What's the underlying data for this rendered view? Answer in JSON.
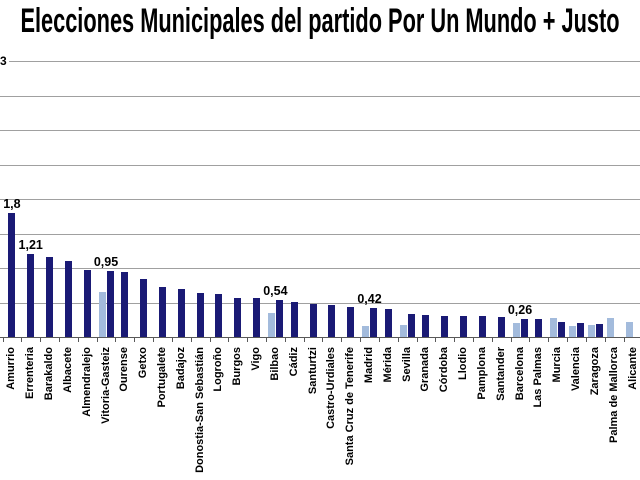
{
  "chart_data": {
    "type": "bar",
    "title": "Elecciones Municipales del partido Por Un Mundo + Justo",
    "ylim": [
      0,
      4
    ],
    "gridline_step": 0.5,
    "decimal_separator": ",",
    "legend_position": "none",
    "y_axis": {
      "visible_label": "3"
    },
    "colors": {
      "dark_series": "#1a1a75",
      "light_series": "#a3bbdc",
      "gridline": "#a0a0a0",
      "axis": "#595959",
      "title_text": "#000000",
      "background": "#ffffff"
    },
    "categories": [
      "Amurrio",
      "Errenteria",
      "Barakaldo",
      "Albacete",
      "Almendralejo",
      "Vitoria-Gasteiz",
      "Ourense",
      "Getxo",
      "Portugalete",
      "Badajoz",
      "Donostia-San Sebastián",
      "Logroño",
      "Burgos",
      "Vigo",
      "Bilbao",
      "Cádiz",
      "Santurtzi",
      "Castro-Urdiales",
      "Santa Cruz de Tenerife",
      "Madrid",
      "Mérida",
      "Sevilla",
      "Granada",
      "Córdoba",
      "Llodio",
      "Pamplona",
      "Santander",
      "Barcelona",
      "Las Palmas",
      "Murcia",
      "Valencia",
      "Zaragoza",
      "Palma de Mallorca",
      "Alicante"
    ],
    "series": [
      {
        "name": "light-blue-series",
        "color": "#a3bbdc",
        "values": [
          null,
          null,
          null,
          null,
          null,
          0.65,
          null,
          null,
          null,
          null,
          null,
          null,
          null,
          null,
          0.35,
          null,
          null,
          null,
          null,
          0.16,
          null,
          0.18,
          null,
          null,
          null,
          null,
          null,
          0.21,
          null,
          0.28,
          0.16,
          0.17,
          0.28,
          0.22
        ]
      },
      {
        "name": "dark-navy-series",
        "color": "#1a1a75",
        "values": [
          1.8,
          1.21,
          1.16,
          1.1,
          0.97,
          0.95,
          0.94,
          0.84,
          0.72,
          0.69,
          0.64,
          0.62,
          0.57,
          0.56,
          0.54,
          0.5,
          0.48,
          0.46,
          0.43,
          0.42,
          0.4,
          0.33,
          0.32,
          0.31,
          0.3,
          0.3,
          0.29,
          0.26,
          0.26,
          0.22,
          0.2,
          0.19,
          null,
          null
        ]
      }
    ],
    "data_labels": [
      {
        "category": "Amurrio",
        "text": "1,8"
      },
      {
        "category": "Errenteria",
        "text": "1,21"
      },
      {
        "category": "Vitoria-Gasteiz",
        "text": "0,95"
      },
      {
        "category": "Bilbao",
        "text": "0,54"
      },
      {
        "category": "Madrid",
        "text": "0,42"
      },
      {
        "category": "Barcelona",
        "text": "0,26"
      }
    ]
  }
}
